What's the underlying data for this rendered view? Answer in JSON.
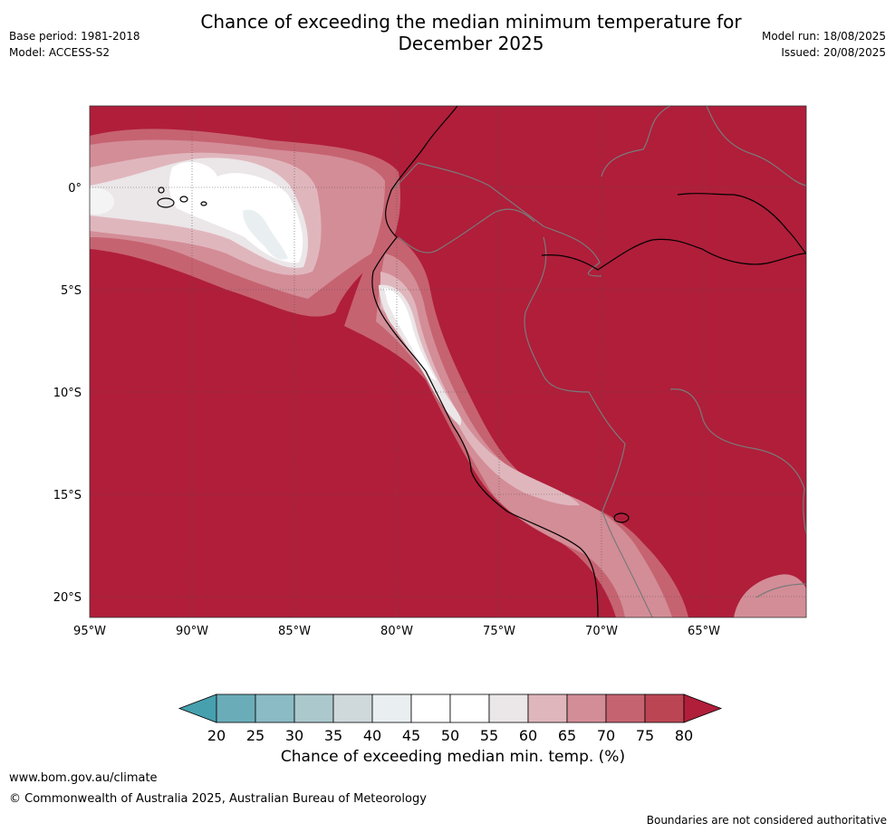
{
  "header": {
    "title_line1": "Chance of exceeding the median minimum temperature for",
    "title_line2": "December 2025",
    "base_period": "Base period: 1981-2018",
    "model": "Model: ACCESS-S2",
    "model_run": "Model run: 18/08/2025",
    "issued": "Issued: 20/08/2025"
  },
  "map": {
    "latitude_labels": [
      "0°",
      "5°S",
      "10°S",
      "15°S",
      "20°S"
    ],
    "longitude_labels": [
      "95°W",
      "90°W",
      "85°W",
      "80°W",
      "75°W",
      "70°W",
      "65°W"
    ],
    "background_color": "#b01e3a"
  },
  "colorbar": {
    "title": "Chance of exceeding median min. temp. (%)",
    "ticks": [
      "20",
      "25",
      "30",
      "35",
      "40",
      "45",
      "50",
      "55",
      "60",
      "65",
      "70",
      "75",
      "80"
    ],
    "colors": [
      "#47a0ae",
      "#6aadb9",
      "#8bbbc4",
      "#abc8cd",
      "#cfd9dc",
      "#e9eff1",
      "#ffffff",
      "#ffffff",
      "#ebe6e8",
      "#e0b6bd",
      "#d38d97",
      "#c66371",
      "#bc4554",
      "#b01e3a"
    ]
  },
  "footer": {
    "url": "www.bom.gov.au/climate",
    "copyright": "© Commonwealth of Australia 2025, Australian Bureau of Meteorology",
    "note": "Boundaries are not considered authoritative"
  }
}
